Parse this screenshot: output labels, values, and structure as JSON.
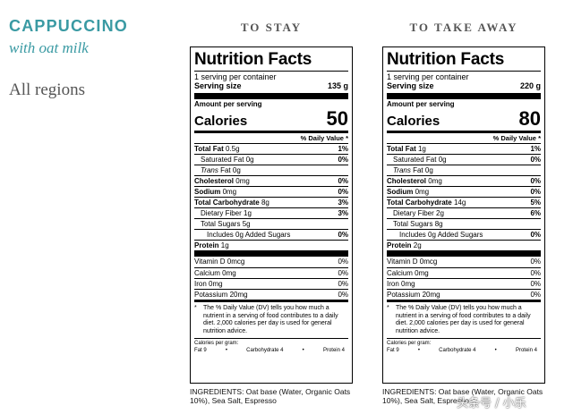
{
  "header": {
    "product": "CAPPUCCINO",
    "variant": "with oat milk",
    "regions": "All regions"
  },
  "panels": [
    {
      "heading": "TO STAY",
      "title": "Nutrition Facts",
      "servings_per_container": "1 serving per container",
      "serving_size_label": "Serving size",
      "serving_size": "135 g",
      "amount_per_serving": "Amount per serving",
      "calories_label": "Calories",
      "calories": "50",
      "dv_header": "% Daily Value *",
      "rows": [
        {
          "label_bold": "Total Fat",
          "label": " 0.5g",
          "dv": "1%"
        },
        {
          "label": "Saturated Fat 0g",
          "dv": "0%"
        },
        {
          "label_italic": "Trans",
          "label": " Fat 0g",
          "dv": ""
        },
        {
          "label_bold": "Cholesterol",
          "label": " 0mg",
          "dv": "0%"
        },
        {
          "label_bold": "Sodium",
          "label": " 0mg",
          "dv": "0%"
        },
        {
          "label_bold": "Total Carbohydrate",
          "label": " 8g",
          "dv": "3%"
        },
        {
          "label": "Dietary Fiber 1g",
          "dv": "3%"
        },
        {
          "label": "Total Sugars 5g",
          "dv": ""
        },
        {
          "label": "Includes 0g Added Sugars",
          "dv": "0%"
        },
        {
          "label_bold": "Protein",
          "label": " 1g",
          "dv": ""
        }
      ],
      "vitamins": [
        {
          "label": "Vitamin D 0mcg",
          "dv": "0%"
        },
        {
          "label": "Calcium 0mg",
          "dv": "0%"
        },
        {
          "label": "Iron 0mg",
          "dv": "0%"
        },
        {
          "label": "Potassium 20mg",
          "dv": "0%"
        }
      ],
      "footnote": "The % Daily Value (DV) tells you how much a nutrient in a serving of food contributes to a daily diet. 2,000 calories per day is used for general nutrition advice.",
      "calories_per_gram": "Calories per gram:",
      "cpg_fat": "Fat 9",
      "cpg_carb": "Carbohydrate 4",
      "cpg_protein": "Protein 4",
      "ingredients": "INGREDIENTS: Oat base (Water, Organic Oats 10%), Sea Salt, Espresso"
    },
    {
      "heading": "TO TAKE AWAY",
      "title": "Nutrition Facts",
      "servings_per_container": "1 serving per container",
      "serving_size_label": "Serving size",
      "serving_size": "220 g",
      "amount_per_serving": "Amount per serving",
      "calories_label": "Calories",
      "calories": "80",
      "dv_header": "% Daily Value *",
      "rows": [
        {
          "label_bold": "Total Fat",
          "label": " 1g",
          "dv": "1%"
        },
        {
          "label": "Saturated Fat 0g",
          "dv": "0%"
        },
        {
          "label_italic": "Trans",
          "label": " Fat 0g",
          "dv": ""
        },
        {
          "label_bold": "Cholesterol",
          "label": " 0mg",
          "dv": "0%"
        },
        {
          "label_bold": "Sodium",
          "label": " 0mg",
          "dv": "0%"
        },
        {
          "label_bold": "Total Carbohydrate",
          "label": " 14g",
          "dv": "5%"
        },
        {
          "label": "Dietary Fiber 2g",
          "dv": "6%"
        },
        {
          "label": "Total Sugars 8g",
          "dv": ""
        },
        {
          "label": "Includes 0g Added Sugars",
          "dv": "0%"
        },
        {
          "label_bold": "Protein",
          "label": " 2g",
          "dv": ""
        }
      ],
      "vitamins": [
        {
          "label": "Vitamin D 0mcg",
          "dv": "0%"
        },
        {
          "label": "Calcium 0mg",
          "dv": "0%"
        },
        {
          "label": "Iron 0mg",
          "dv": "0%"
        },
        {
          "label": "Potassium 20mg",
          "dv": "0%"
        }
      ],
      "footnote": "The % Daily Value (DV) tells you how much a nutrient in a serving of food contributes to a daily diet. 2,000 calories per day is used for general nutrition advice.",
      "calories_per_gram": "Calories per gram:",
      "cpg_fat": "Fat 9",
      "cpg_carb": "Carbohydrate 4",
      "cpg_protein": "Protein 4",
      "ingredients": "INGREDIENTS: Oat base (Water, Organic Oats 10%), Sea Salt, Espresso"
    }
  ],
  "watermark": "头条号 / 小乐"
}
